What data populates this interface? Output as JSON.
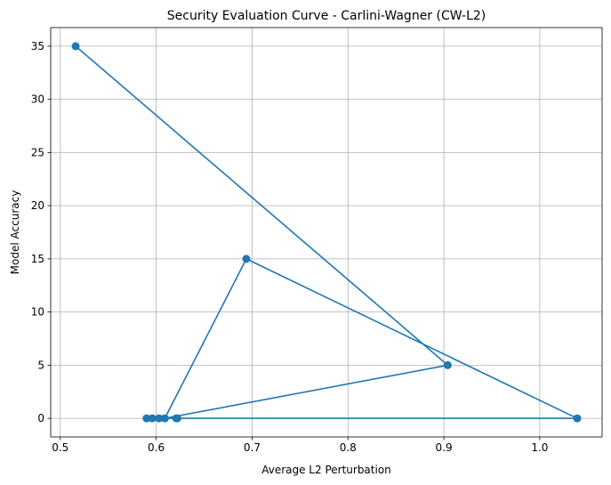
{
  "chart_data": {
    "type": "line",
    "title": "Security Evaluation Curve - Carlini-Wagner (CW-L2)",
    "xlabel": "Average L2 Perturbation",
    "ylabel": "Model Accuracy",
    "xlim": [
      0.49,
      1.065
    ],
    "ylim": [
      -1.75,
      36.75
    ],
    "xticks": [
      0.5,
      0.6,
      0.7,
      0.8,
      0.9,
      1.0
    ],
    "xtick_labels": [
      "0.5",
      "0.6",
      "0.7",
      "0.8",
      "0.9",
      "1.0"
    ],
    "yticks": [
      0,
      5,
      10,
      15,
      20,
      25,
      30,
      35
    ],
    "ytick_labels": [
      "0",
      "5",
      "10",
      "15",
      "20",
      "25",
      "30",
      "35"
    ],
    "grid": true,
    "marker": "circle",
    "series": [
      {
        "color": "#1f77b4",
        "points": [
          {
            "x": 0.516,
            "y": 35
          },
          {
            "x": 0.904,
            "y": 5
          },
          {
            "x": 0.609,
            "y": 0
          },
          {
            "x": 0.694,
            "y": 15
          },
          {
            "x": 1.039,
            "y": 0
          },
          {
            "x": 0.622,
            "y": 0
          },
          {
            "x": 0.59,
            "y": 0
          },
          {
            "x": 0.596,
            "y": 0
          },
          {
            "x": 0.603,
            "y": 0
          },
          {
            "x": 0.621,
            "y": 0
          }
        ]
      }
    ]
  }
}
